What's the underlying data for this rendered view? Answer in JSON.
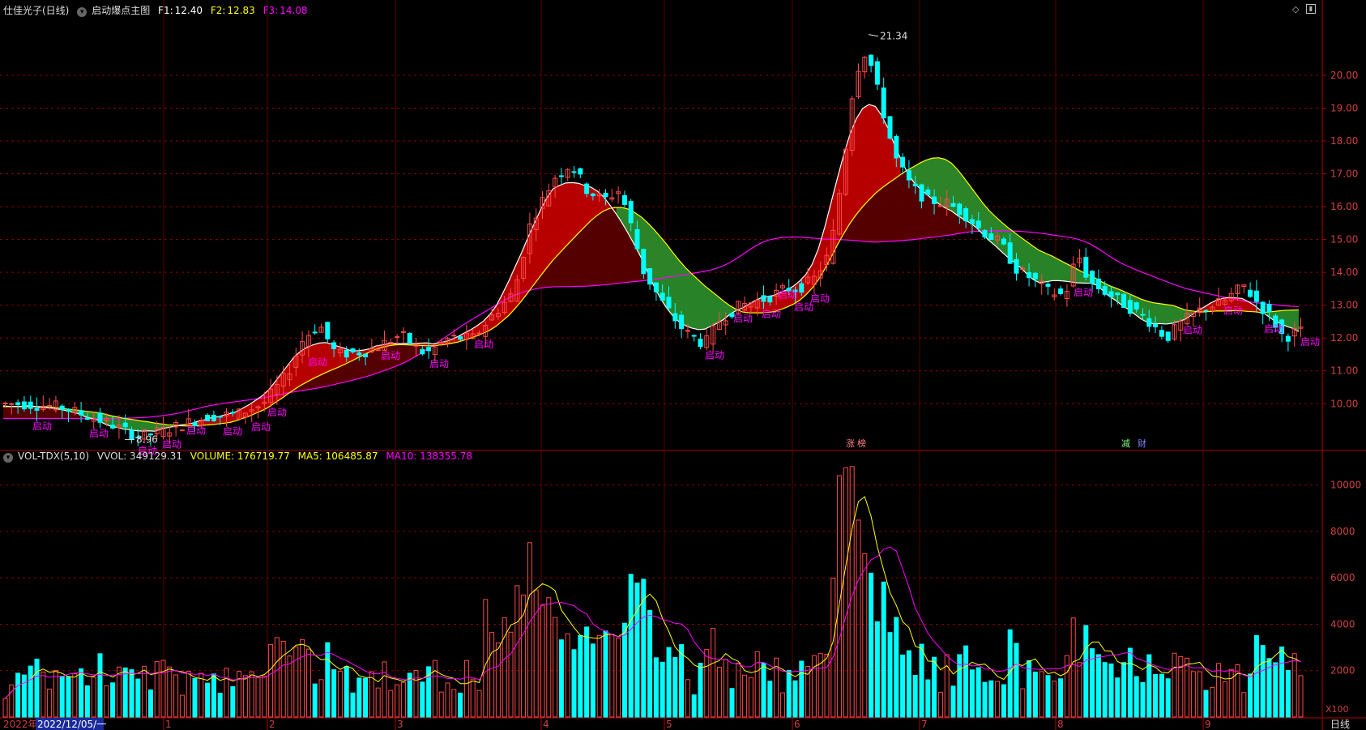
{
  "header": {
    "stock": "仕佳光子(日线)",
    "indicator": "启动爆点主图",
    "f1_label": "F1:",
    "f1_value": "12.40",
    "f2_label": "F2:",
    "f2_value": "12.83",
    "f3_label": "F3:",
    "f3_value": "14.08"
  },
  "vol_header": {
    "name": "VOL-TDX(5,10)",
    "vvol": "VVOL: 349129.31",
    "volume": "VOLUME: 176719.77",
    "ma5": "MA5: 106485.87",
    "ma10": "MA10: 138355.78"
  },
  "colors": {
    "up": "#ff4a4a",
    "down": "#00ffff",
    "grid": "#8b0000",
    "f1": "#ffffff",
    "f2": "#ffff00",
    "f3": "#ff00ff",
    "red_band": "#c00000",
    "dark_band": "#5a0000",
    "green_band": "#2a8a2a",
    "label": "#ff00ff"
  },
  "price_axis": {
    "ticks": [
      "10.00",
      "11.00",
      "12.00",
      "13.00",
      "14.00",
      "15.00",
      "16.00",
      "17.00",
      "18.00",
      "19.00",
      "20.00"
    ]
  },
  "vol_axis": {
    "ticks": [
      "2000",
      "4000",
      "6000",
      "8000",
      "10000"
    ],
    "unit": "X100"
  },
  "time_axis": {
    "start": "2022年",
    "cursor": "2022/12/05/一",
    "months": [
      "1",
      "2",
      "3",
      "4",
      "5",
      "6",
      "7",
      "8",
      "9"
    ],
    "period": "日线"
  },
  "annotations": {
    "high": "21.34",
    "low": "8.96",
    "signal_text": "启动",
    "marks": [
      "涨",
      "榜",
      "减",
      "财"
    ]
  },
  "icons": [
    "diamond-icon",
    "window-icon"
  ],
  "chart_data": {
    "type": "candlestick",
    "panels": [
      {
        "name": "price",
        "indicator": "启动爆点主图",
        "ylim": [
          8.6,
          21.8
        ],
        "series": [
          {
            "name": "F1",
            "values": [
              12.4
            ]
          },
          {
            "name": "F2",
            "values": [
              12.83
            ]
          },
          {
            "name": "F3",
            "values": [
              14.08
            ]
          }
        ],
        "high_label": 21.34,
        "low_label": 8.96
      },
      {
        "name": "volume",
        "indicator": "VOL-TDX(5,10)",
        "ylim": [
          0,
          11000
        ],
        "last": {
          "VVOL": 349129.31,
          "VOLUME": 176719.77,
          "MA5": 106485.87,
          "MA10": 138355.78
        }
      }
    ]
  }
}
